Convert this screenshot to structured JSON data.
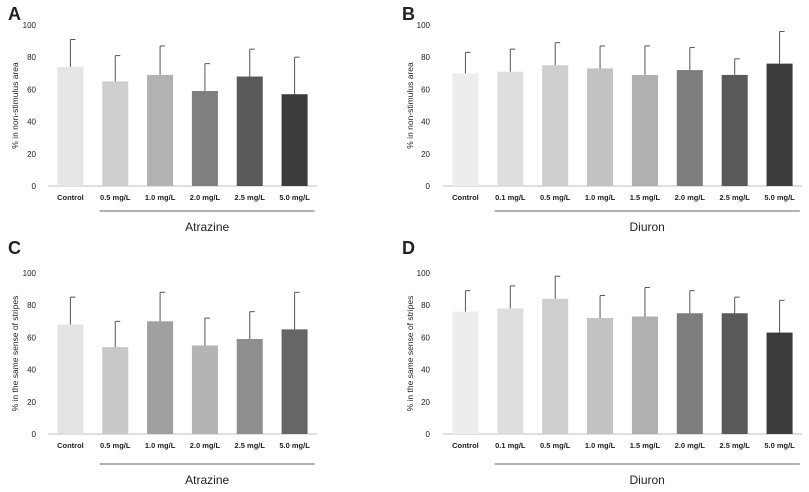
{
  "chart_data": [
    {
      "type": "bar",
      "panel_label": "A",
      "ylabel": "% in non-stimulus area",
      "ylim": [
        0,
        100
      ],
      "yticks": [
        0,
        20,
        40,
        60,
        80,
        100
      ],
      "categories": [
        "Control",
        "0.5 mg/L",
        "1.0 mg/L",
        "2.0 mg/L",
        "2.5 mg/L",
        "5.0 mg/L"
      ],
      "values": [
        74,
        65,
        69,
        59,
        68,
        57
      ],
      "errors": [
        17,
        16,
        18,
        17,
        17,
        23
      ],
      "colors": [
        "#e6e6e6",
        "#cfcfcf",
        "#b2b2b2",
        "#7f7f7f",
        "#595959",
        "#3c3c3c"
      ],
      "group_label": "Atrazine"
    },
    {
      "type": "bar",
      "panel_label": "B",
      "ylabel": "% in non-stimulus area",
      "ylim": [
        0,
        100
      ],
      "yticks": [
        0,
        20,
        40,
        60,
        80,
        100
      ],
      "categories": [
        "Control",
        "0.1 mg/L",
        "0.5 mg/L",
        "1.0 mg/L",
        "1.5 mg/L",
        "2.0 mg/L",
        "2.5 mg/L",
        "5.0 mg/L"
      ],
      "values": [
        70,
        71,
        75,
        73,
        69,
        72,
        69,
        76
      ],
      "errors": [
        13,
        14,
        14,
        14,
        18,
        14,
        10,
        20
      ],
      "colors": [
        "#ededed",
        "#dedede",
        "#cfcfcf",
        "#c2c2c2",
        "#b0b0b0",
        "#7d7d7d",
        "#5a5a5a",
        "#3c3c3c"
      ],
      "group_label": "Diuron"
    },
    {
      "type": "bar",
      "panel_label": "C",
      "ylabel": "% in the same sense of stripes",
      "ylim": [
        0,
        100
      ],
      "yticks": [
        0,
        20,
        40,
        60,
        80,
        100
      ],
      "categories": [
        "Control",
        "0.5 mg/L",
        "1.0 mg/L",
        "2.0 mg/L",
        "2.5 mg/L",
        "5.0 mg/L"
      ],
      "values": [
        68,
        54,
        70,
        55,
        59,
        65
      ],
      "errors": [
        17,
        16,
        18,
        17,
        17,
        23
      ],
      "colors": [
        "#e3e3e3",
        "#c8c8c8",
        "#a0a0a0",
        "#b3b3b3",
        "#8f8f8f",
        "#666666"
      ],
      "group_label": "Atrazine"
    },
    {
      "type": "bar",
      "panel_label": "D",
      "ylabel": "% in the same sense of stripes",
      "ylim": [
        0,
        100
      ],
      "yticks": [
        0,
        20,
        40,
        60,
        80,
        100
      ],
      "categories": [
        "Control",
        "0.1 mg/L",
        "0.5 mg/L",
        "1.0 mg/L",
        "1.5 mg/L",
        "2.0 mg/L",
        "2.5 mg/L",
        "5.0 mg/L"
      ],
      "values": [
        76,
        78,
        84,
        72,
        73,
        75,
        75,
        63
      ],
      "errors": [
        13,
        14,
        14,
        14,
        18,
        14,
        10,
        20
      ],
      "colors": [
        "#ededed",
        "#dedede",
        "#cfcfcf",
        "#c2c2c2",
        "#b0b0b0",
        "#7d7d7d",
        "#5a5a5a",
        "#3c3c3c"
      ],
      "group_label": "Diuron"
    }
  ]
}
